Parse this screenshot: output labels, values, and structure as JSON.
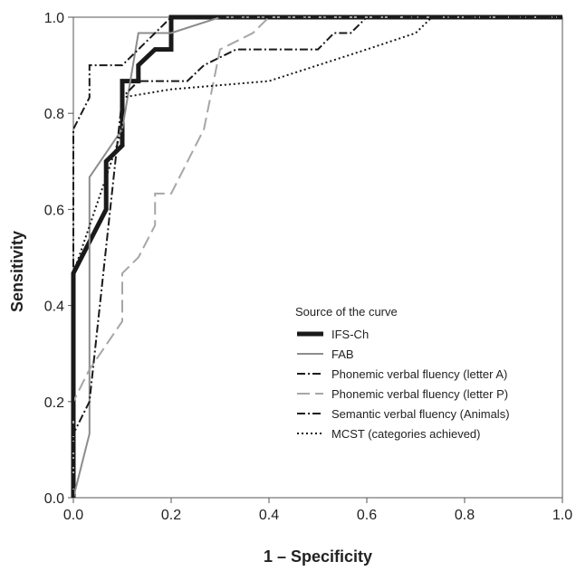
{
  "chart_data": {
    "type": "line",
    "title": "",
    "xlabel": "1 – Specificity",
    "ylabel": "Sensitivity",
    "xlim": [
      0.0,
      1.0
    ],
    "ylim": [
      0.0,
      1.0
    ],
    "xticks": [
      "0.0",
      "0.2",
      "0.4",
      "0.6",
      "0.8",
      "1.0"
    ],
    "yticks": [
      "0.0",
      "0.2",
      "0.4",
      "0.6",
      "0.8",
      "1.0"
    ],
    "grid": false,
    "legend": {
      "title": "Source of the curve",
      "position": "bottom-right"
    },
    "series": [
      {
        "name": "IFS-Ch",
        "color": "#1a1a1a",
        "style": "solid",
        "weight": "bold",
        "x": [
          0.0,
          0.0,
          0.067,
          0.067,
          0.1,
          0.1,
          0.133,
          0.133,
          0.167,
          0.2,
          0.2,
          1.0
        ],
        "y": [
          0.0,
          0.467,
          0.6,
          0.7,
          0.733,
          0.867,
          0.867,
          0.9,
          0.933,
          0.933,
          1.0,
          1.0
        ]
      },
      {
        "name": "FAB",
        "color": "#8c8c8c",
        "style": "solid",
        "weight": "normal",
        "x": [
          0.0,
          0.033,
          0.033,
          0.1,
          0.133,
          0.167,
          0.2,
          0.3,
          1.0
        ],
        "y": [
          0.0,
          0.133,
          0.667,
          0.767,
          0.967,
          0.967,
          0.967,
          1.0,
          1.0
        ],
        "note": ""
      },
      {
        "name": "Phonemic verbal fluency (letter A)",
        "color": "#1a1a1a",
        "style": "dashdot",
        "weight": "normal",
        "x": [
          0.0,
          0.0,
          0.033,
          0.1,
          0.133,
          0.167,
          0.2,
          0.233,
          0.267,
          0.333,
          0.4,
          0.5,
          0.533,
          0.567,
          0.6,
          0.633,
          1.0
        ],
        "y": [
          0.0,
          0.133,
          0.2,
          0.833,
          0.867,
          0.867,
          0.867,
          0.867,
          0.9,
          0.933,
          0.933,
          0.933,
          0.967,
          0.967,
          1.0,
          1.0,
          1.0
        ]
      },
      {
        "name": "Phonemic verbal fluency (letter P)",
        "color": "#a6a6a6",
        "style": "dashed",
        "weight": "normal",
        "x": [
          0.0,
          0.0,
          0.033,
          0.1,
          0.1,
          0.133,
          0.167,
          0.167,
          0.2,
          0.267,
          0.3,
          0.367,
          0.4,
          1.0
        ],
        "y": [
          0.0,
          0.2,
          0.267,
          0.367,
          0.467,
          0.5,
          0.567,
          0.633,
          0.633,
          0.767,
          0.933,
          0.967,
          1.0,
          1.0
        ]
      },
      {
        "name": "Semantic verbal fluency (Animals)",
        "color": "#1a1a1a",
        "style": "dashdot",
        "weight": "normal",
        "x": [
          0.0,
          0.0,
          0.033,
          0.033,
          0.1,
          0.1,
          0.133,
          0.167,
          0.2,
          1.0
        ],
        "y": [
          0.0,
          0.767,
          0.833,
          0.9,
          0.9,
          0.9,
          0.933,
          0.967,
          1.0,
          1.0
        ]
      },
      {
        "name": "MCST (categories achieved)",
        "color": "#1a1a1a",
        "style": "dotted",
        "weight": "normal",
        "x": [
          0.0,
          0.0,
          0.067,
          0.1,
          0.1,
          0.2,
          0.4,
          0.5,
          0.6,
          0.7,
          0.733,
          1.0
        ],
        "y": [
          0.0,
          0.467,
          0.667,
          0.767,
          0.833,
          0.85,
          0.867,
          0.9,
          0.933,
          0.967,
          1.0,
          1.0
        ]
      }
    ]
  }
}
